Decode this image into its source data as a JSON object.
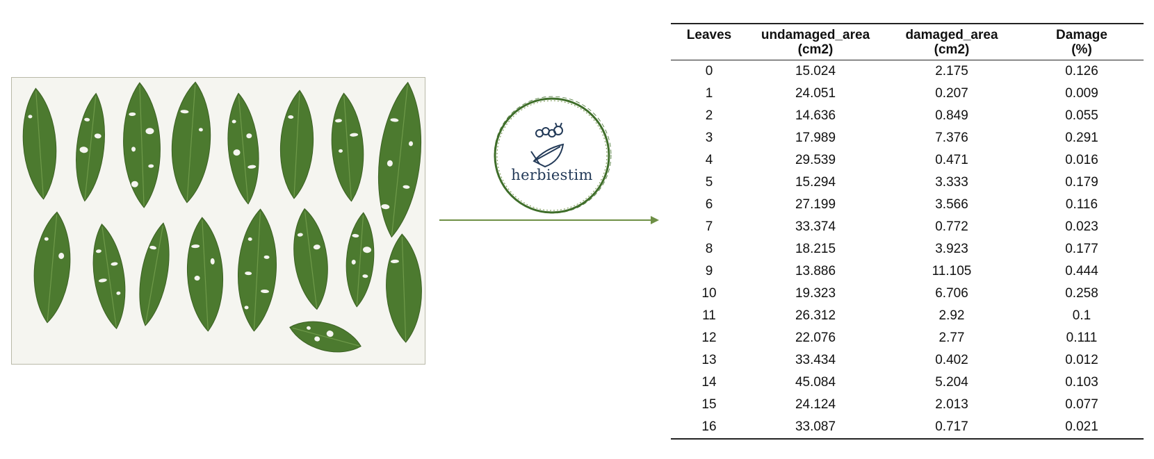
{
  "logo": {
    "name": "herbiestim"
  },
  "photo": {
    "leaf_color": "#4c7a2f"
  },
  "arrow": {
    "color": "#6e8f45"
  },
  "table": {
    "headers": [
      {
        "line1": "Leaves",
        "line2": ""
      },
      {
        "line1": "undamaged_area",
        "line2": "(cm2)"
      },
      {
        "line1": "damaged_area",
        "line2": "(cm2)"
      },
      {
        "line1": "Damage",
        "line2": "(%)"
      }
    ],
    "rows": [
      [
        "0",
        "15.024",
        "2.175",
        "0.126"
      ],
      [
        "1",
        "24.051",
        "0.207",
        "0.009"
      ],
      [
        "2",
        "14.636",
        "0.849",
        "0.055"
      ],
      [
        "3",
        "17.989",
        "7.376",
        "0.291"
      ],
      [
        "4",
        "29.539",
        "0.471",
        "0.016"
      ],
      [
        "5",
        "15.294",
        "3.333",
        "0.179"
      ],
      [
        "6",
        "27.199",
        "3.566",
        "0.116"
      ],
      [
        "7",
        "33.374",
        "0.772",
        "0.023"
      ],
      [
        "8",
        "18.215",
        "3.923",
        "0.177"
      ],
      [
        "9",
        "13.886",
        "11.105",
        "0.444"
      ],
      [
        "10",
        "19.323",
        "6.706",
        "0.258"
      ],
      [
        "11",
        "26.312",
        "2.92",
        "0.1"
      ],
      [
        "12",
        "22.076",
        "2.77",
        "0.111"
      ],
      [
        "13",
        "33.434",
        "0.402",
        "0.012"
      ],
      [
        "14",
        "45.084",
        "5.204",
        "0.103"
      ],
      [
        "15",
        "24.124",
        "2.013",
        "0.077"
      ],
      [
        "16",
        "33.087",
        "0.717",
        "0.021"
      ]
    ]
  }
}
